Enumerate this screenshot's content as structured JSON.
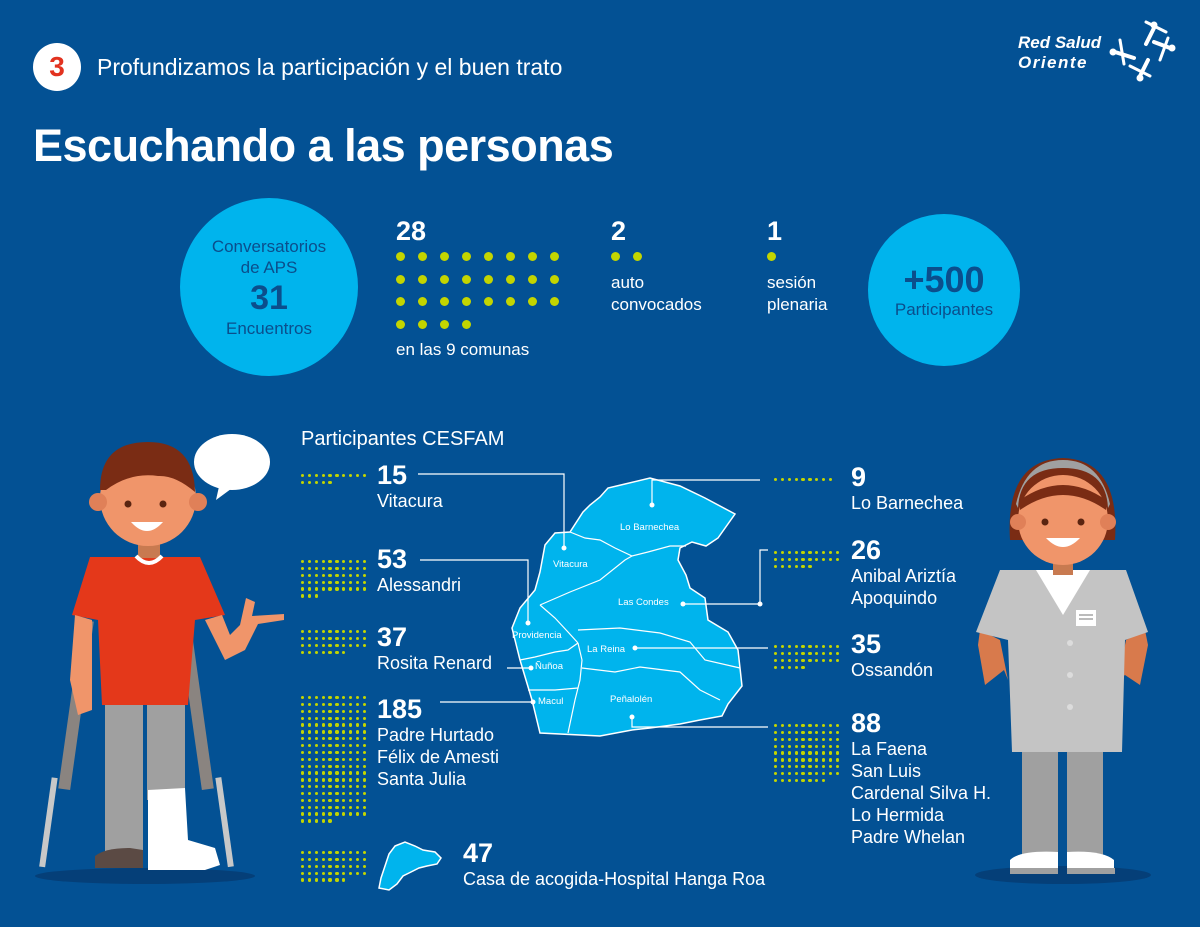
{
  "header": {
    "section_number": "3",
    "subtitle": "Profundizamos la participación y el buen trato",
    "title": "Escuchando a las personas",
    "logo": {
      "line1": "Red Salud",
      "line2": "Oriente",
      "icon": "people-star-logo-icon"
    }
  },
  "colors": {
    "background": "#035194",
    "accent_cyan": "#00b4ed",
    "dot_yellow": "#c3d500",
    "badge_red": "#e2321f"
  },
  "summary": {
    "conversatorios": {
      "line1": "Conversatorios",
      "line2": "de APS",
      "number": "31",
      "label": "Encuentros"
    },
    "comunas": {
      "number": "28",
      "count": 28,
      "label": "en las 9 comunas"
    },
    "autoconvocados": {
      "number": "2",
      "count": 2,
      "label_line1": "auto",
      "label_line2": "convocados"
    },
    "plenaria": {
      "number": "1",
      "count": 1,
      "label_line1": "sesión",
      "label_line2": "plenaria"
    },
    "participantes": {
      "number": "+500",
      "label": "Participantes"
    }
  },
  "cesfam": {
    "title": "Participantes CESFAM",
    "left": [
      {
        "number": "15",
        "count": 15,
        "names": [
          "Vitacura"
        ]
      },
      {
        "number": "53",
        "count": 53,
        "names": [
          "Alessandri"
        ]
      },
      {
        "number": "37",
        "count": 37,
        "names": [
          "Rosita Renard"
        ]
      },
      {
        "number": "185",
        "count": 185,
        "names": [
          "Padre Hurtado",
          "Félix de Amesti",
          "Santa Julia"
        ]
      }
    ],
    "right": [
      {
        "number": "9",
        "count": 9,
        "names": [
          "Lo Barnechea"
        ]
      },
      {
        "number": "26",
        "count": 26,
        "names": [
          "Anibal Ariztía",
          "Apoquindo"
        ]
      },
      {
        "number": "35",
        "count": 35,
        "names": [
          "Ossandón"
        ]
      },
      {
        "number": "88",
        "count": 88,
        "names": [
          "La Faena",
          "San Luis",
          "Cardenal Silva H.",
          "Lo Hermida",
          "Padre Whelan"
        ]
      }
    ],
    "island": {
      "number": "47",
      "count": 47,
      "names": [
        "Casa de acogida-Hospital Hanga Roa"
      ]
    }
  },
  "map": {
    "comunas": [
      "Lo Barnechea",
      "Vitacura",
      "Las Condes",
      "Providencia",
      "La Reina",
      "Ñuñoa",
      "Macul",
      "Peñalolén"
    ]
  }
}
